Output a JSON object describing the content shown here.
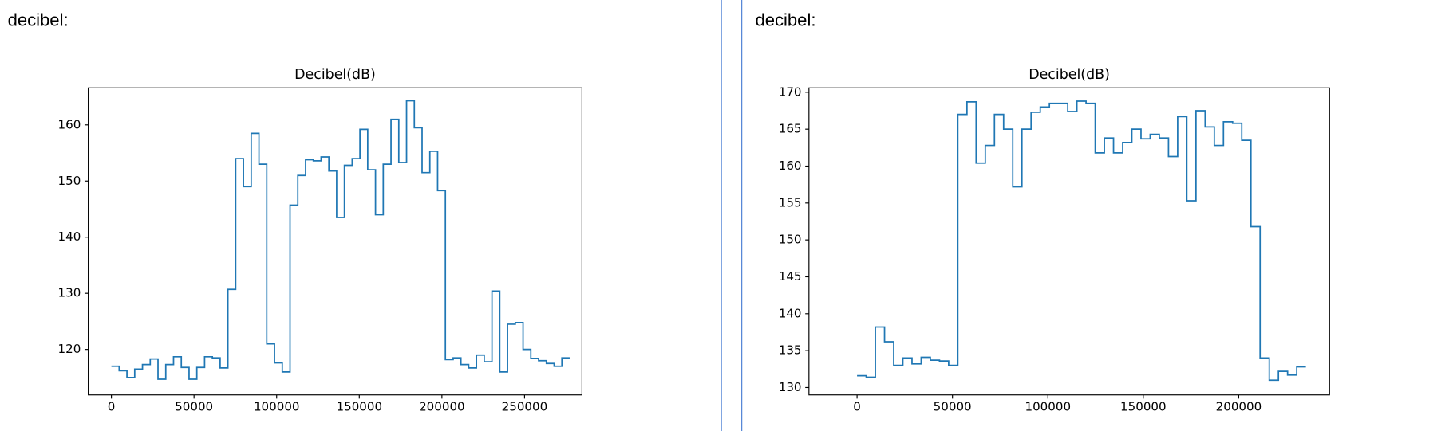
{
  "cell_labels": [
    "decibel:",
    "decibel:"
  ],
  "chart_data": [
    {
      "type": "line",
      "drawstyle": "steps-post",
      "title": "Decibel(dB)",
      "color": "#1f77b4",
      "x": [
        0,
        4700,
        9400,
        14100,
        18800,
        23500,
        28200,
        32900,
        37600,
        42300,
        47000,
        51700,
        56400,
        61100,
        65800,
        70500,
        75200,
        79900,
        84600,
        89300,
        94000,
        98700,
        103400,
        108100,
        112800,
        117500,
        122200,
        126900,
        131600,
        136300,
        141000,
        145700,
        150400,
        155100,
        159800,
        164500,
        169200,
        173900,
        178600,
        183300,
        188000,
        192700,
        197400,
        202100,
        206800,
        211500,
        216200,
        220900,
        225600,
        230300,
        235000,
        239700,
        244400,
        249100,
        253800,
        258500,
        263200,
        267900,
        272600,
        277300
      ],
      "values": [
        117,
        116.2,
        115,
        116.5,
        117.3,
        118.3,
        114.7,
        117.3,
        118.7,
        116.8,
        114.7,
        116.8,
        118.7,
        118.5,
        116.7,
        130.7,
        154,
        149,
        158.5,
        153,
        121,
        117.6,
        116,
        145.7,
        151,
        153.8,
        153.6,
        154.3,
        151.8,
        143.5,
        152.8,
        154,
        159.2,
        152,
        144,
        153,
        161,
        153.3,
        164.3,
        159.5,
        151.5,
        155.3,
        148.3,
        118.2,
        118.5,
        117.3,
        116.7,
        119,
        117.8,
        130.4,
        116,
        124.5,
        124.8,
        120,
        118.4,
        118,
        117.5,
        117,
        118.5,
        118.5
      ],
      "xlim": [
        -14000,
        284750
      ],
      "ylim": [
        111.9,
        166.6
      ],
      "xticks": [
        0,
        50000,
        100000,
        150000,
        200000,
        250000
      ],
      "yticks": [
        120,
        130,
        140,
        150,
        160
      ]
    },
    {
      "type": "line",
      "drawstyle": "steps-post",
      "title": "Decibel(dB)",
      "color": "#1f77b4",
      "x": [
        0,
        4800,
        9600,
        14400,
        19200,
        24000,
        28800,
        33600,
        38400,
        43200,
        48000,
        52800,
        57600,
        62400,
        67200,
        72000,
        76800,
        81600,
        86400,
        91200,
        96000,
        100800,
        105600,
        110400,
        115200,
        120000,
        124800,
        129600,
        134400,
        139200,
        144000,
        148800,
        153600,
        158400,
        163200,
        168000,
        172800,
        177600,
        182400,
        187200,
        192000,
        196800,
        201600,
        206400,
        211200,
        216000,
        220800,
        225600,
        230400,
        235200
      ],
      "values": [
        131.6,
        131.4,
        138.2,
        136.2,
        133,
        134,
        133.2,
        134.1,
        133.7,
        133.6,
        133,
        167,
        168.7,
        160.4,
        162.8,
        167,
        165,
        157.2,
        165,
        167.3,
        168,
        168.5,
        168.5,
        167.4,
        168.8,
        168.5,
        161.8,
        163.8,
        161.8,
        163.2,
        165,
        163.7,
        164.3,
        163.8,
        161.3,
        166.7,
        155.3,
        167.5,
        165.3,
        162.8,
        166,
        165.8,
        163.5,
        151.8,
        134,
        131,
        132.2,
        131.7,
        132.8,
        132.8
      ],
      "xlim": [
        -25200,
        247600
      ],
      "ylim": [
        129,
        170.6
      ],
      "xticks": [
        0,
        50000,
        100000,
        150000,
        200000
      ],
      "yticks": [
        130,
        135,
        140,
        145,
        150,
        155,
        160,
        165,
        170
      ]
    }
  ]
}
